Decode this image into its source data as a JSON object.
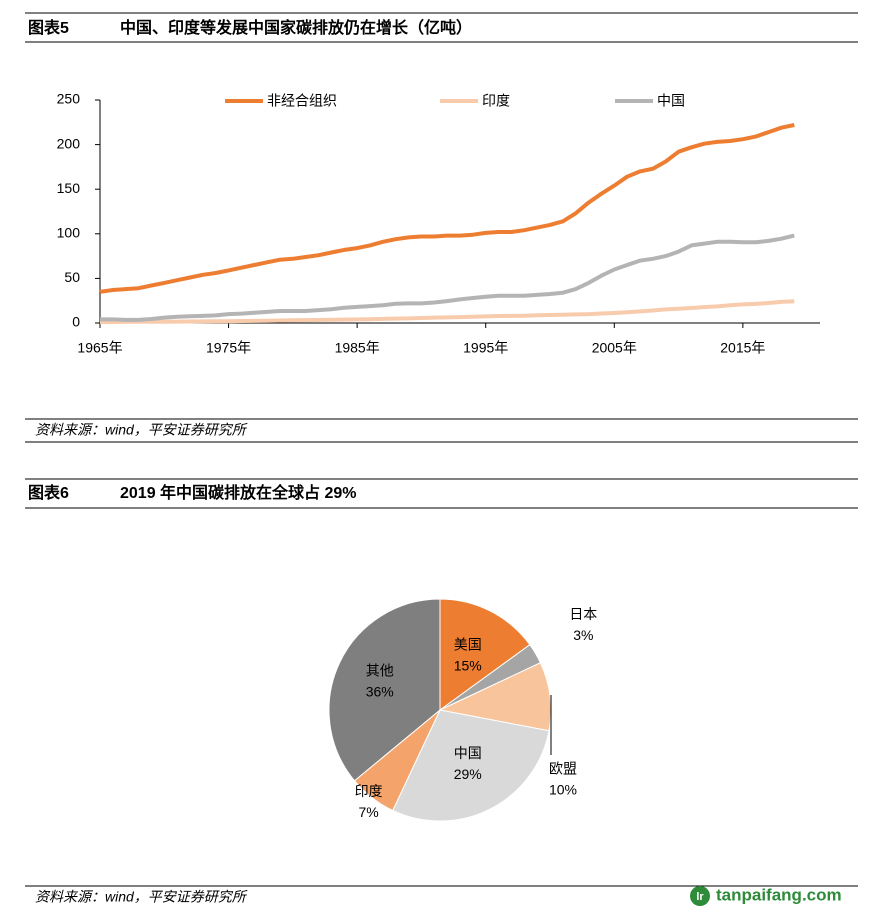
{
  "chart_data": [
    {
      "type": "line",
      "figure_label": "图表5",
      "title": "中国、印度等发展中国家碳排放仍在增长（亿吨）",
      "source": "资料来源：wind，平安证券研究所",
      "x": [
        1965,
        1966,
        1967,
        1968,
        1969,
        1970,
        1971,
        1972,
        1973,
        1974,
        1975,
        1976,
        1977,
        1978,
        1979,
        1980,
        1981,
        1982,
        1983,
        1984,
        1985,
        1986,
        1987,
        1988,
        1989,
        1990,
        1991,
        1992,
        1993,
        1994,
        1995,
        1996,
        1997,
        1998,
        1999,
        2000,
        2001,
        2002,
        2003,
        2004,
        2005,
        2006,
        2007,
        2008,
        2009,
        2010,
        2011,
        2012,
        2013,
        2014,
        2015,
        2016,
        2017,
        2018,
        2019
      ],
      "series": [
        {
          "name": "非经合组织",
          "color": "#ed7d31",
          "values": [
            35,
            37,
            38,
            39,
            42,
            45,
            48,
            51,
            54,
            56,
            59,
            62,
            65,
            68,
            71,
            72,
            74,
            76,
            79,
            82,
            84,
            87,
            91,
            94,
            96,
            97,
            97,
            98,
            98,
            99,
            101,
            102,
            102,
            104,
            107,
            110,
            114,
            123,
            135,
            145,
            154,
            164,
            170,
            173,
            181,
            192,
            197,
            201,
            203,
            204,
            206,
            209,
            214,
            219,
            222
          ]
        },
        {
          "name": "印度",
          "color": "#f8cbad",
          "values": [
            1.0,
            1.1,
            1.2,
            1.3,
            1.4,
            1.5,
            1.6,
            1.7,
            1.8,
            1.9,
            2.0,
            2.2,
            2.4,
            2.6,
            2.8,
            3.0,
            3.2,
            3.4,
            3.6,
            3.8,
            4.0,
            4.3,
            4.6,
            4.9,
            5.2,
            5.6,
            6.0,
            6.3,
            6.6,
            7.0,
            7.4,
            7.8,
            8.0,
            8.2,
            8.6,
            9.0,
            9.2,
            9.6,
            10.0,
            10.6,
            11.2,
            12.0,
            13.0,
            14.0,
            15.2,
            16.0,
            16.8,
            17.8,
            18.6,
            20.0,
            20.8,
            21.4,
            22.4,
            23.6,
            24.4
          ]
        },
        {
          "name": "中国",
          "color": "#b4b4b4",
          "values": [
            4,
            4,
            3.5,
            3.5,
            4.5,
            6,
            7,
            7.5,
            8,
            8.5,
            10,
            10.5,
            11.5,
            12.5,
            13.5,
            13.5,
            13.5,
            14.5,
            15.5,
            17,
            18,
            19,
            20,
            21.5,
            22,
            22,
            23,
            24.5,
            26.5,
            28,
            29.5,
            30.5,
            30.5,
            30.5,
            31.5,
            32.5,
            34,
            38,
            45,
            53,
            60,
            65,
            70,
            72,
            75,
            80,
            87,
            89,
            91,
            91,
            90.5,
            90.5,
            92,
            94.5,
            98
          ]
        }
      ],
      "xlim": [
        1965,
        2021
      ],
      "xticks": [
        {
          "value": 1965,
          "label": "1965年"
        },
        {
          "value": 1975,
          "label": "1975年"
        },
        {
          "value": 1985,
          "label": "1985年"
        },
        {
          "value": 1995,
          "label": "1995年"
        },
        {
          "value": 2005,
          "label": "2005年"
        },
        {
          "value": 2015,
          "label": "2015年"
        }
      ],
      "ylim": [
        0,
        250
      ],
      "yticks": [
        0,
        50,
        100,
        150,
        200,
        250
      ],
      "legend": "top",
      "grid": false
    },
    {
      "type": "pie",
      "figure_label": "图表6",
      "title": "2019 年中国碳排放在全球占 29%",
      "source": "资料来源：wind，平安证券研究所",
      "categories": [
        "美国",
        "日本",
        "欧盟",
        "中国",
        "印度",
        "其他"
      ],
      "values": [
        15,
        3,
        10,
        29,
        7,
        36
      ],
      "value_labels": [
        "15%",
        "3%",
        "10%",
        "29%",
        "7%",
        "36%"
      ],
      "colors": [
        "#ed7d31",
        "#a5a5a5",
        "#f8c49c",
        "#d9d9d9",
        "#f4a46a",
        "#7f7f7f"
      ]
    }
  ],
  "watermark": "tanpaifang.com"
}
